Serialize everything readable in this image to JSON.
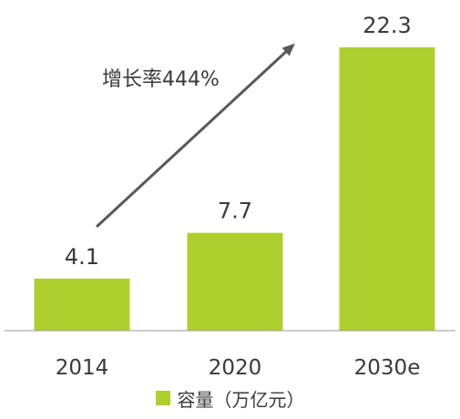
{
  "chart_data": {
    "type": "bar",
    "categories": [
      "2014",
      "2020",
      "2030e"
    ],
    "series": [
      {
        "name": "容量（万亿元）",
        "values": [
          4.1,
          7.7,
          22.3
        ]
      }
    ],
    "data_labels": [
      "4.1",
      "7.7",
      "22.3"
    ],
    "ylim": [
      0,
      22.3
    ],
    "grid": false,
    "legend": "bottom",
    "annotation": {
      "text": "增长率444%",
      "from_category": "2014",
      "to_category": "2030e"
    },
    "colors": {
      "bar": "#afcf2f",
      "text": "#3a3a3a",
      "arrow": "#595959",
      "axis": "#9a9a9a"
    }
  },
  "legend": {
    "label": "容量（万亿元）"
  }
}
